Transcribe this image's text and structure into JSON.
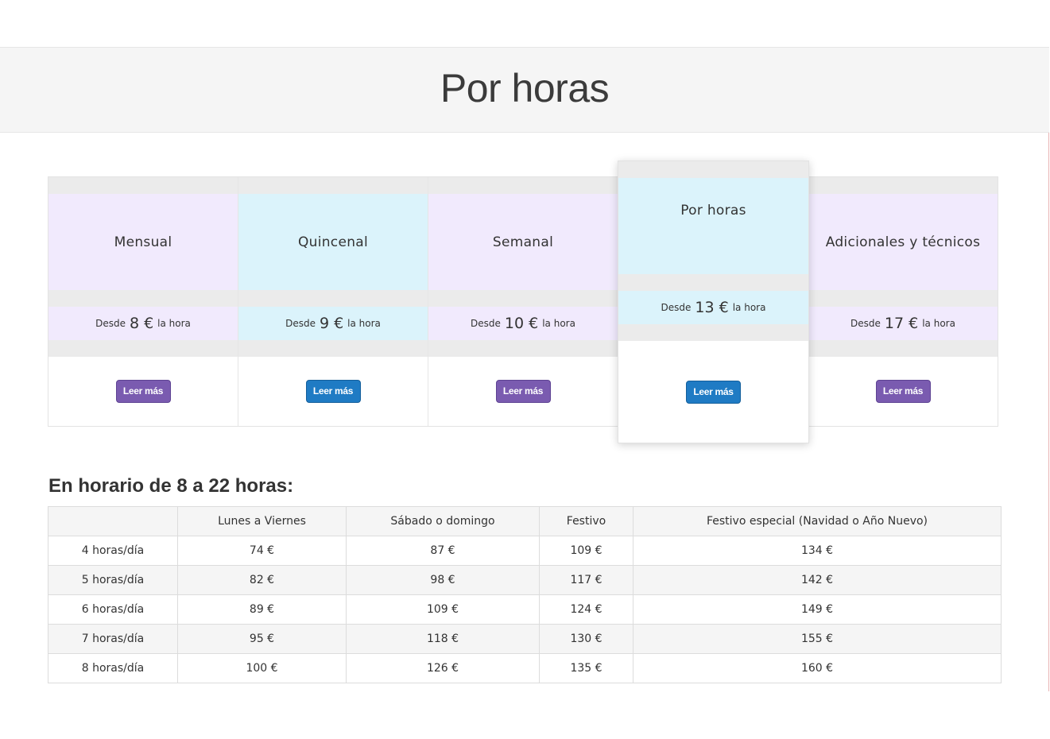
{
  "page": {
    "title": "Por horas"
  },
  "plans": [
    {
      "name": "Mensual",
      "prefix": "Desde",
      "amount": "8 €",
      "suffix": "la hora",
      "button": "Leer más",
      "theme": "purple"
    },
    {
      "name": "Quincenal",
      "prefix": "Desde",
      "amount": "9 €",
      "suffix": "la hora",
      "button": "Leer más",
      "theme": "blue"
    },
    {
      "name": "Semanal",
      "prefix": "Desde",
      "amount": "10 €",
      "suffix": "la hora",
      "button": "Leer más",
      "theme": "purple"
    },
    {
      "name": "Por horas",
      "prefix": "Desde",
      "amount": "13 €",
      "suffix": "la hora",
      "button": "Leer más",
      "theme": "blue",
      "featured": true
    },
    {
      "name": "Adicionales y técnicos",
      "prefix": "Desde",
      "amount": "17 €",
      "suffix": "la hora",
      "button": "Leer más",
      "theme": "purple"
    }
  ],
  "schedule": {
    "title": "En horario de 8 a 22 horas:",
    "headers": [
      "",
      "Lunes a Viernes",
      "Sábado o domingo",
      "Festivo",
      "Festivo especial (Navidad o Año Nuevo)"
    ],
    "rows": [
      [
        "4 horas/día",
        "74 €",
        "87 €",
        "109 €",
        "134 €"
      ],
      [
        "5 horas/día",
        "82 €",
        "98 €",
        "117 €",
        "142 €"
      ],
      [
        "6 horas/día",
        "89 €",
        "109 €",
        "124 €",
        "149 €"
      ],
      [
        "7 horas/día",
        "95 €",
        "118 €",
        "130 €",
        "155 €"
      ],
      [
        "8 horas/día",
        "100 €",
        "126 €",
        "135 €",
        "160 €"
      ]
    ]
  },
  "colors": {
    "purple_bg": "#f1eafd",
    "blue_bg": "#dbf3fb",
    "purple_button": "#7a5bb0",
    "blue_button": "#1f7bc4"
  }
}
